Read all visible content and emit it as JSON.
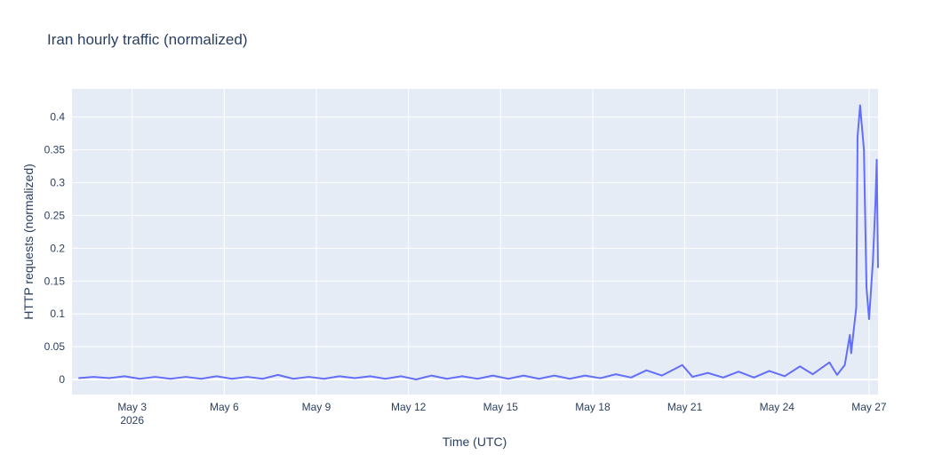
{
  "chart_data": {
    "type": "line",
    "title": "Iran hourly traffic (normalized)",
    "x_label": "Time (UTC)",
    "y_label": "HTTP requests (normalized)",
    "x": [
      "2026-05-01T06:00",
      "2026-05-01T18:00",
      "2026-05-02T06:00",
      "2026-05-02T18:00",
      "2026-05-03T06:00",
      "2026-05-03T18:00",
      "2026-05-04T06:00",
      "2026-05-04T18:00",
      "2026-05-05T06:00",
      "2026-05-05T18:00",
      "2026-05-06T06:00",
      "2026-05-06T18:00",
      "2026-05-07T06:00",
      "2026-05-07T18:00",
      "2026-05-08T06:00",
      "2026-05-08T18:00",
      "2026-05-09T06:00",
      "2026-05-09T18:00",
      "2026-05-10T06:00",
      "2026-05-10T18:00",
      "2026-05-11T06:00",
      "2026-05-11T18:00",
      "2026-05-12T06:00",
      "2026-05-12T18:00",
      "2026-05-13T06:00",
      "2026-05-13T18:00",
      "2026-05-14T06:00",
      "2026-05-14T18:00",
      "2026-05-15T06:00",
      "2026-05-15T18:00",
      "2026-05-16T06:00",
      "2026-05-16T18:00",
      "2026-05-17T06:00",
      "2026-05-17T18:00",
      "2026-05-18T06:00",
      "2026-05-18T18:00",
      "2026-05-19T06:00",
      "2026-05-19T18:00",
      "2026-05-20T06:00",
      "2026-05-20T22:00",
      "2026-05-21T06:00",
      "2026-05-21T18:00",
      "2026-05-22T06:00",
      "2026-05-22T18:00",
      "2026-05-23T06:00",
      "2026-05-23T18:00",
      "2026-05-24T06:00",
      "2026-05-24T18:00",
      "2026-05-25T04:00",
      "2026-05-25T17:00",
      "2026-05-25T23:00",
      "2026-05-26T05:00",
      "2026-05-26T09:00",
      "2026-05-26T10:00",
      "2026-05-26T12:00",
      "2026-05-26T14:00",
      "2026-05-26T15:00",
      "2026-05-26T17:00",
      "2026-05-26T20:00",
      "2026-05-26T22:00",
      "2026-05-27T00:00",
      "2026-05-27T03:00",
      "2026-05-27T05:00",
      "2026-05-27T06:00",
      "2026-05-27T07:00"
    ],
    "series": [
      {
        "name": "Iran",
        "color": "#636efa",
        "values": [
          0.002,
          0.004,
          0.002,
          0.005,
          0.001,
          0.004,
          0.001,
          0.004,
          0.001,
          0.005,
          0.001,
          0.004,
          0.001,
          0.007,
          0.001,
          0.004,
          0.001,
          0.005,
          0.002,
          0.005,
          0.001,
          0.005,
          0.0,
          0.006,
          0.001,
          0.005,
          0.001,
          0.006,
          0.001,
          0.006,
          0.001,
          0.006,
          0.001,
          0.006,
          0.002,
          0.008,
          0.003,
          0.014,
          0.006,
          0.022,
          0.004,
          0.01,
          0.003,
          0.012,
          0.003,
          0.013,
          0.005,
          0.02,
          0.008,
          0.026,
          0.007,
          0.022,
          0.068,
          0.04,
          0.075,
          0.11,
          0.37,
          0.418,
          0.35,
          0.14,
          0.092,
          0.18,
          0.27,
          0.335,
          0.17
        ]
      }
    ],
    "xlim": [
      "2026-05-01T01:00",
      "2026-05-27T07:00"
    ],
    "xticks": [
      {
        "value": "2026-05-03",
        "label": "May 3\n2026"
      },
      {
        "value": "2026-05-06",
        "label": "May 6"
      },
      {
        "value": "2026-05-09",
        "label": "May 9"
      },
      {
        "value": "2026-05-12",
        "label": "May 12"
      },
      {
        "value": "2026-05-15",
        "label": "May 15"
      },
      {
        "value": "2026-05-18",
        "label": "May 18"
      },
      {
        "value": "2026-05-21",
        "label": "May 21"
      },
      {
        "value": "2026-05-24",
        "label": "May 24"
      },
      {
        "value": "2026-05-27",
        "label": "May 27"
      }
    ],
    "ylim": [
      -0.023,
      0.443
    ],
    "yticks": [
      0,
      0.05,
      0.1,
      0.15,
      0.2,
      0.25,
      0.3,
      0.35,
      0.4
    ],
    "grid": true
  }
}
